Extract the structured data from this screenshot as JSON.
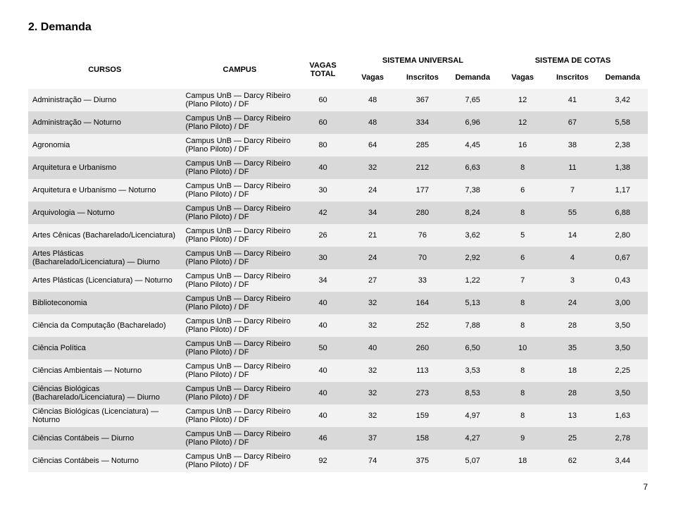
{
  "section_title": "2. Demanda",
  "headers": {
    "cursos": "CURSOS",
    "campus": "CAMPUS",
    "vagas_total": "VAGAS TOTAL",
    "sistema_universal": "SISTEMA UNIVERSAL",
    "sistema_cotas": "SISTEMA DE COTAS",
    "vagas": "Vagas",
    "inscritos": "Inscritos",
    "demanda": "Demanda"
  },
  "rows": [
    {
      "curso": "Administração — Diurno",
      "campus": "Campus UnB — Darcy Ribeiro (Plano Piloto) / DF",
      "vt": "60",
      "uv": "48",
      "ui": "367",
      "ud": "7,65",
      "cv": "12",
      "ci": "41",
      "cd": "3,42"
    },
    {
      "curso": "Administração — Noturno",
      "campus": "Campus UnB — Darcy Ribeiro (Plano Piloto) / DF",
      "vt": "60",
      "uv": "48",
      "ui": "334",
      "ud": "6,96",
      "cv": "12",
      "ci": "67",
      "cd": "5,58"
    },
    {
      "curso": "Agronomia",
      "campus": "Campus UnB — Darcy Ribeiro (Plano Piloto) / DF",
      "vt": "80",
      "uv": "64",
      "ui": "285",
      "ud": "4,45",
      "cv": "16",
      "ci": "38",
      "cd": "2,38"
    },
    {
      "curso": "Arquitetura e Urbanismo",
      "campus": "Campus UnB — Darcy Ribeiro (Plano Piloto) / DF",
      "vt": "40",
      "uv": "32",
      "ui": "212",
      "ud": "6,63",
      "cv": "8",
      "ci": "11",
      "cd": "1,38"
    },
    {
      "curso": "Arquitetura e Urbanismo — Noturno",
      "campus": "Campus UnB — Darcy Ribeiro (Plano Piloto) / DF",
      "vt": "30",
      "uv": "24",
      "ui": "177",
      "ud": "7,38",
      "cv": "6",
      "ci": "7",
      "cd": "1,17"
    },
    {
      "curso": "Arquivologia — Noturno",
      "campus": "Campus UnB — Darcy Ribeiro (Plano Piloto) / DF",
      "vt": "42",
      "uv": "34",
      "ui": "280",
      "ud": "8,24",
      "cv": "8",
      "ci": "55",
      "cd": "6,88"
    },
    {
      "curso": "Artes Cênicas (Bacharelado/Licenciatura)",
      "campus": "Campus UnB — Darcy Ribeiro (Plano Piloto) / DF",
      "vt": "26",
      "uv": "21",
      "ui": "76",
      "ud": "3,62",
      "cv": "5",
      "ci": "14",
      "cd": "2,80"
    },
    {
      "curso": "Artes Plásticas (Bacharelado/Licenciatura) — Diurno",
      "campus": "Campus UnB — Darcy Ribeiro (Plano Piloto) / DF",
      "vt": "30",
      "uv": "24",
      "ui": "70",
      "ud": "2,92",
      "cv": "6",
      "ci": "4",
      "cd": "0,67"
    },
    {
      "curso": "Artes Plásticas (Licenciatura) — Noturno",
      "campus": "Campus UnB — Darcy Ribeiro (Plano Piloto) / DF",
      "vt": "34",
      "uv": "27",
      "ui": "33",
      "ud": "1,22",
      "cv": "7",
      "ci": "3",
      "cd": "0,43"
    },
    {
      "curso": "Biblioteconomia",
      "campus": "Campus UnB — Darcy Ribeiro (Plano Piloto) / DF",
      "vt": "40",
      "uv": "32",
      "ui": "164",
      "ud": "5,13",
      "cv": "8",
      "ci": "24",
      "cd": "3,00"
    },
    {
      "curso": "Ciência da Computação (Bacharelado)",
      "campus": "Campus UnB — Darcy Ribeiro (Plano Piloto) / DF",
      "vt": "40",
      "uv": "32",
      "ui": "252",
      "ud": "7,88",
      "cv": "8",
      "ci": "28",
      "cd": "3,50"
    },
    {
      "curso": "Ciência Política",
      "campus": "Campus UnB — Darcy Ribeiro (Plano Piloto) / DF",
      "vt": "50",
      "uv": "40",
      "ui": "260",
      "ud": "6,50",
      "cv": "10",
      "ci": "35",
      "cd": "3,50"
    },
    {
      "curso": "Ciências Ambientais — Noturno",
      "campus": "Campus UnB — Darcy Ribeiro (Plano Piloto) / DF",
      "vt": "40",
      "uv": "32",
      "ui": "113",
      "ud": "3,53",
      "cv": "8",
      "ci": "18",
      "cd": "2,25"
    },
    {
      "curso": "Ciências Biológicas (Bacharelado/Licenciatura) — Diurno",
      "campus": "Campus UnB — Darcy Ribeiro (Plano Piloto) / DF",
      "vt": "40",
      "uv": "32",
      "ui": "273",
      "ud": "8,53",
      "cv": "8",
      "ci": "28",
      "cd": "3,50"
    },
    {
      "curso": "Ciências Biológicas (Licenciatura) — Noturno",
      "campus": "Campus UnB — Darcy Ribeiro (Plano Piloto) / DF",
      "vt": "40",
      "uv": "32",
      "ui": "159",
      "ud": "4,97",
      "cv": "8",
      "ci": "13",
      "cd": "1,63"
    },
    {
      "curso": "Ciências Contábeis — Diurno",
      "campus": "Campus UnB — Darcy Ribeiro (Plano Piloto) / DF",
      "vt": "46",
      "uv": "37",
      "ui": "158",
      "ud": "4,27",
      "cv": "9",
      "ci": "25",
      "cd": "2,78"
    },
    {
      "curso": "Ciências Contábeis — Noturno",
      "campus": "Campus UnB — Darcy Ribeiro (Plano Piloto) / DF",
      "vt": "92",
      "uv": "74",
      "ui": "375",
      "ud": "5,07",
      "cv": "18",
      "ci": "62",
      "cd": "3,44"
    }
  ],
  "page_number": "7",
  "colors": {
    "even_row": "#f2f2f2",
    "odd_row": "#d9d9d9",
    "text": "#000000",
    "background": "#ffffff"
  }
}
